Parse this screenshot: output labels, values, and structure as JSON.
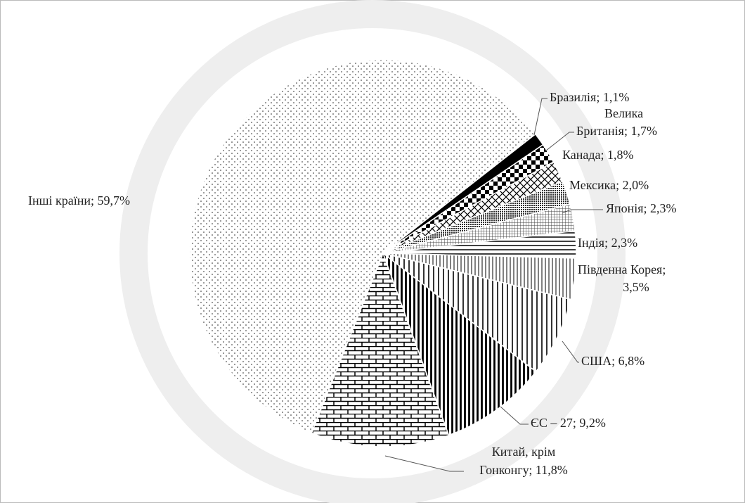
{
  "chart_data": {
    "type": "pie",
    "labels": [
      [
        "Бразилія; 1,1%"
      ],
      [
        "Велика",
        "Британія; 1,7%"
      ],
      [
        "Канада; 1,8%"
      ],
      [
        "Мексика; 2,0%"
      ],
      [
        "Японія; 2,3%"
      ],
      [
        "Індія; 2,3%"
      ],
      [
        "Південна Корея;",
        "3,5%"
      ],
      [
        "США; 6,8%"
      ],
      [
        "ЄС – 27; 9,2%"
      ],
      [
        "Китай, крім",
        "Гонконгу; 11,8%"
      ],
      [
        "Інші країни; 59,7%"
      ]
    ],
    "values": [
      1.1,
      1.7,
      1.8,
      2.0,
      2.3,
      2.3,
      3.5,
      6.8,
      9.2,
      11.8,
      59.7
    ]
  }
}
